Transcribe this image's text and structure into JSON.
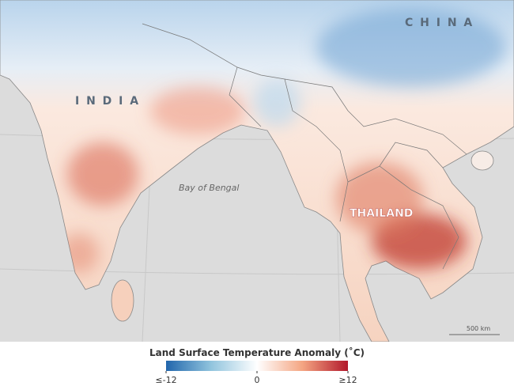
{
  "map": {
    "labels": {
      "india": "I N D I A",
      "china": "C H I N A",
      "thailand": "THAILAND",
      "bay": "Bay of Bengal"
    },
    "scale_bar": "500 km"
  },
  "legend": {
    "title": "Land Surface Temperature Anomaly (˚C)",
    "range": [
      -12,
      12
    ],
    "ticks": [
      {
        "value": -12,
        "label": "≤-12"
      },
      0,
      {
        "value": 12,
        "label": "≥12"
      }
    ]
  }
}
